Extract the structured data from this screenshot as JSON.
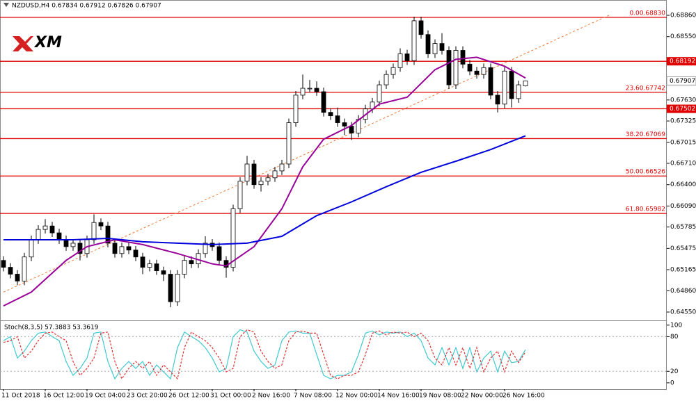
{
  "chart_data": [
    {
      "type": "candlestick",
      "title": "NZDUSD,H4 0.67834 0.67912 0.67826 0.67907",
      "logo": "XM",
      "categories": [
        "11 Oct 2018",
        null,
        null,
        null,
        null,
        null,
        "16 Oct 12:00",
        null,
        null,
        null,
        null,
        null,
        "19 Oct 04:00",
        null,
        null,
        null,
        null,
        null,
        "23 Oct 20:00",
        null,
        null,
        null,
        null,
        null,
        "26 Oct 12:00",
        null,
        null,
        null,
        null,
        null,
        "31 Oct 00:00",
        null,
        null,
        null,
        null,
        null,
        "2 Nov 16:00",
        null,
        null,
        null,
        null,
        null,
        "7 Nov 08:00",
        null,
        null,
        null,
        null,
        null,
        "12 Nov 00:00",
        null,
        null,
        null,
        null,
        null,
        "14 Nov 16:00",
        null,
        null,
        null,
        null,
        null,
        "19 Nov 08:00",
        null,
        null,
        null,
        null,
        null,
        "22 Nov 00:00",
        null,
        null,
        null,
        null,
        null,
        "26 Nov 16:00",
        null,
        null,
        null
      ],
      "open": [
        0.653,
        0.652,
        0.651,
        0.65,
        0.6535,
        0.656,
        0.6575,
        0.658,
        0.657,
        0.656,
        0.655,
        0.6555,
        0.654,
        0.656,
        0.6585,
        0.658,
        0.6555,
        0.654,
        0.655,
        0.6545,
        0.6535,
        0.652,
        0.6525,
        0.6515,
        0.651,
        0.647,
        0.651,
        0.653,
        0.6525,
        0.654,
        0.6555,
        0.655,
        0.653,
        0.652,
        0.6605,
        0.6645,
        0.667,
        0.664,
        0.6645,
        0.665,
        0.666,
        0.667,
        0.673,
        0.677,
        0.678,
        0.678,
        0.6775,
        0.6745,
        0.674,
        0.673,
        0.6725,
        0.6715,
        0.6735,
        0.675,
        0.676,
        0.6785,
        0.68,
        0.681,
        0.683,
        0.682,
        0.6878,
        0.6858,
        0.683,
        0.6845,
        0.6835,
        0.6785,
        0.6835,
        0.6815,
        0.6805,
        0.68,
        0.681,
        0.677,
        0.6757,
        0.6805,
        0.6765,
        0.67834
      ],
      "high": [
        0.6536,
        0.6526,
        0.6516,
        0.6541,
        0.6566,
        0.6581,
        0.659,
        0.6586,
        0.6576,
        0.6566,
        0.6561,
        0.6561,
        0.6566,
        0.6597,
        0.6591,
        0.6586,
        0.6561,
        0.6556,
        0.6556,
        0.6551,
        0.6541,
        0.6531,
        0.6531,
        0.6521,
        0.6516,
        0.6516,
        0.6536,
        0.6536,
        0.6546,
        0.6565,
        0.6561,
        0.6556,
        0.6536,
        0.6611,
        0.6651,
        0.6682,
        0.6676,
        0.6651,
        0.6656,
        0.6666,
        0.6676,
        0.6736,
        0.6776,
        0.68,
        0.6792,
        0.679,
        0.6781,
        0.6751,
        0.6752,
        0.6736,
        0.6731,
        0.6741,
        0.6756,
        0.6766,
        0.6791,
        0.6806,
        0.6816,
        0.6838,
        0.6836,
        0.6884,
        0.6884,
        0.6864,
        0.6851,
        0.686,
        0.6841,
        0.6841,
        0.6841,
        0.6821,
        0.6811,
        0.6816,
        0.6816,
        0.6776,
        0.6811,
        0.6811,
        0.6791,
        0.67912
      ],
      "low": [
        0.6514,
        0.6504,
        0.6494,
        0.6494,
        0.6529,
        0.6554,
        0.6569,
        0.6564,
        0.6554,
        0.6544,
        0.6544,
        0.653,
        0.6534,
        0.6554,
        0.6574,
        0.6549,
        0.6534,
        0.6534,
        0.6539,
        0.6529,
        0.651,
        0.6514,
        0.6509,
        0.65,
        0.6462,
        0.6464,
        0.6504,
        0.6519,
        0.6519,
        0.6534,
        0.6544,
        0.6524,
        0.6505,
        0.6514,
        0.6599,
        0.6639,
        0.6634,
        0.663,
        0.6639,
        0.6644,
        0.6654,
        0.6664,
        0.6724,
        0.6764,
        0.6774,
        0.6769,
        0.6739,
        0.6734,
        0.6724,
        0.6712,
        0.6705,
        0.6709,
        0.6729,
        0.6744,
        0.6754,
        0.6779,
        0.6794,
        0.6804,
        0.6814,
        0.6814,
        0.6852,
        0.6824,
        0.6824,
        0.6829,
        0.6779,
        0.6779,
        0.6809,
        0.6799,
        0.6794,
        0.6794,
        0.6764,
        0.6745,
        0.6751,
        0.6752,
        0.6759,
        0.67826
      ],
      "close": [
        0.652,
        0.651,
        0.65,
        0.6535,
        0.656,
        0.6575,
        0.658,
        0.657,
        0.656,
        0.655,
        0.6555,
        0.654,
        0.656,
        0.6585,
        0.658,
        0.6555,
        0.654,
        0.655,
        0.6545,
        0.6535,
        0.652,
        0.6525,
        0.6515,
        0.651,
        0.647,
        0.651,
        0.653,
        0.6525,
        0.654,
        0.6555,
        0.655,
        0.653,
        0.652,
        0.6605,
        0.6645,
        0.667,
        0.664,
        0.6645,
        0.665,
        0.666,
        0.667,
        0.673,
        0.677,
        0.678,
        0.678,
        0.6775,
        0.6745,
        0.674,
        0.673,
        0.6725,
        0.6715,
        0.6735,
        0.675,
        0.676,
        0.6785,
        0.68,
        0.681,
        0.683,
        0.682,
        0.6878,
        0.6858,
        0.683,
        0.6845,
        0.6835,
        0.6785,
        0.6835,
        0.6815,
        0.6805,
        0.68,
        0.681,
        0.677,
        0.6757,
        0.6805,
        0.6765,
        0.6785,
        0.67907
      ],
      "moving_averages": [
        {
          "color": "#990099",
          "x": [
            0,
            4,
            9,
            12,
            16,
            20,
            25,
            30,
            32,
            36,
            40,
            43,
            46,
            50,
            54,
            58,
            62,
            65,
            68,
            72,
            75
          ],
          "values": [
            0.6464,
            0.6484,
            0.653,
            0.655,
            0.656,
            0.6553,
            0.654,
            0.6525,
            0.6522,
            0.655,
            0.6605,
            0.6666,
            0.6706,
            0.6726,
            0.6757,
            0.6767,
            0.6807,
            0.6822,
            0.6825,
            0.6812,
            0.6795
          ]
        },
        {
          "color": "#0000dd",
          "x": [
            0,
            10,
            15,
            20,
            25,
            30,
            35,
            40,
            45,
            50,
            55,
            60,
            65,
            70,
            75
          ],
          "values": [
            0.656,
            0.656,
            0.6562,
            0.6557,
            0.6555,
            0.6553,
            0.6555,
            0.6565,
            0.6595,
            0.6615,
            0.6637,
            0.6658,
            0.6674,
            0.6691,
            0.6711
          ]
        }
      ],
      "trendline": {
        "color": "#f07830",
        "x": [
          0,
          87
        ],
        "values": [
          0.6484,
          0.6886
        ]
      },
      "levels": [
        {
          "value": 0.6883,
          "label": "0.00.68830"
        },
        {
          "value": 0.67742,
          "label": "23.60.67742"
        },
        {
          "value": 0.67069,
          "label": "38.20.67069"
        },
        {
          "value": 0.66526,
          "label": "50.00.66526"
        },
        {
          "value": 0.65982,
          "label": "61.80.65982"
        }
      ],
      "marked_prices": [
        0.68192,
        0.67502
      ],
      "level_color": "#e00000",
      "current_price": 0.67907,
      "ylim": [
        0.64439,
        0.69082
      ],
      "yticks": [
        {
          "value": 0.6886,
          "label": "0.68860"
        },
        {
          "value": 0.6855,
          "label": "0.68550"
        },
        {
          "value": 0.6763,
          "label": "0.67630"
        },
        0.67325,
        0.67015,
        {
          "value": 0.6671,
          "label": "0.66710"
        },
        {
          "value": 0.664,
          "label": "0.66400"
        },
        {
          "value": 0.6609,
          "label": "0.66090"
        },
        0.65785,
        0.65475,
        0.65165,
        {
          "value": 0.6486,
          "label": "0.64860"
        },
        {
          "value": 0.6455,
          "label": "0.64550"
        }
      ]
    },
    {
      "type": "line",
      "title": "Stoch(8,3,5) 57.3883 53.3619",
      "series": [
        {
          "color": "#40c8d0",
          "values": [
            73,
            80,
            43,
            55,
            73,
            86,
            88,
            80,
            73,
            37,
            13,
            25,
            43,
            86,
            88,
            37,
            7,
            25,
            37,
            25,
            37,
            13,
            31,
            19,
            7,
            61,
            88,
            80,
            73,
            61,
            43,
            19,
            25,
            80,
            92,
            88,
            55,
            37,
            25,
            31,
            73,
            88,
            90,
            86,
            86,
            49,
            13,
            7,
            13,
            13,
            19,
            49,
            86,
            90,
            83,
            88,
            86,
            88,
            80,
            86,
            73,
            43,
            31,
            61,
            31,
            61,
            25,
            61,
            19,
            43,
            55,
            19,
            55,
            35,
            37,
            57.3883
          ]
        },
        {
          "color": "#e03030",
          "dashed": true,
          "values": [
            70,
            73,
            80,
            43,
            55,
            73,
            86,
            88,
            80,
            73,
            37,
            13,
            25,
            43,
            86,
            88,
            37,
            7,
            25,
            37,
            25,
            37,
            13,
            31,
            19,
            7,
            61,
            88,
            80,
            73,
            61,
            43,
            19,
            25,
            80,
            92,
            88,
            55,
            37,
            25,
            31,
            73,
            88,
            90,
            86,
            86,
            49,
            13,
            7,
            13,
            13,
            19,
            49,
            86,
            90,
            83,
            88,
            86,
            88,
            80,
            86,
            73,
            43,
            31,
            61,
            31,
            61,
            25,
            61,
            19,
            43,
            55,
            19,
            55,
            35,
            53.3619
          ]
        }
      ],
      "levels": [
        80,
        20
      ],
      "ylim": [
        -11,
        107
      ],
      "yticks": [
        100,
        80,
        20,
        0
      ]
    }
  ]
}
